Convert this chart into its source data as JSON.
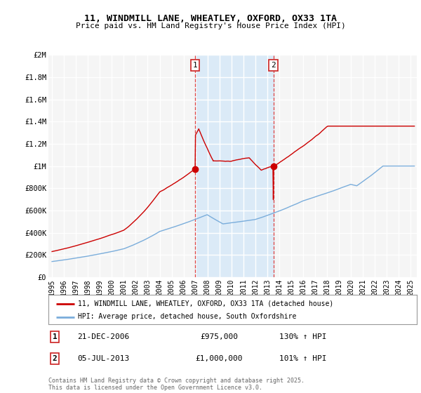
{
  "title1": "11, WINDMILL LANE, WHEATLEY, OXFORD, OX33 1TA",
  "title2": "Price paid vs. HM Land Registry's House Price Index (HPI)",
  "ylabel_ticks": [
    "£0",
    "£200K",
    "£400K",
    "£600K",
    "£800K",
    "£1M",
    "£1.2M",
    "£1.4M",
    "£1.6M",
    "£1.8M",
    "£2M"
  ],
  "ytick_values": [
    0,
    200000,
    400000,
    600000,
    800000,
    1000000,
    1200000,
    1400000,
    1600000,
    1800000,
    2000000
  ],
  "ylim": [
    0,
    2000000
  ],
  "xlim_start": 1994.7,
  "xlim_end": 2025.5,
  "xtick_years": [
    1995,
    1996,
    1997,
    1998,
    1999,
    2000,
    2001,
    2002,
    2003,
    2004,
    2005,
    2006,
    2007,
    2008,
    2009,
    2010,
    2011,
    2012,
    2013,
    2014,
    2015,
    2016,
    2017,
    2018,
    2019,
    2020,
    2021,
    2022,
    2023,
    2024,
    2025
  ],
  "background_color": "#ffffff",
  "plot_bg_color": "#f5f5f5",
  "grid_color": "#ffffff",
  "red_line_color": "#cc0000",
  "blue_line_color": "#7aaddb",
  "shade_color": "#dbeaf7",
  "sale1_x": 2006.97,
  "sale1_y": 975000,
  "sale2_x": 2013.51,
  "sale2_y": 1000000,
  "legend1": "11, WINDMILL LANE, WHEATLEY, OXFORD, OX33 1TA (detached house)",
  "legend2": "HPI: Average price, detached house, South Oxfordshire",
  "note1_label": "1",
  "note1_date": "21-DEC-2006",
  "note1_price": "£975,000",
  "note1_hpi": "130% ↑ HPI",
  "note2_label": "2",
  "note2_date": "05-JUL-2013",
  "note2_price": "£1,000,000",
  "note2_hpi": "101% ↑ HPI",
  "footer": "Contains HM Land Registry data © Crown copyright and database right 2025.\nThis data is licensed under the Open Government Licence v3.0."
}
